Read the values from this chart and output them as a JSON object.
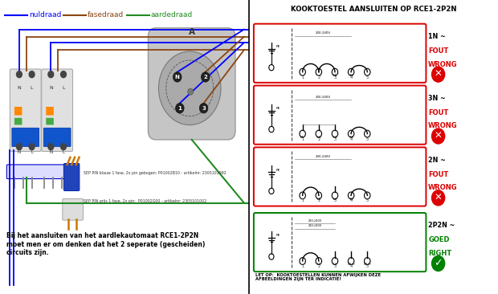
{
  "bg_color": "#ffffff",
  "title_right": "KOOKTOESTEL AANSLUITEN OP RCE1-2P2N",
  "bottom_note": "LET OP:  KOOKTOESTELLEN KUNNEN AFWIJKEN DEZE\nAFBEELDINGEN ZIJN TER INDICATIE!",
  "main_text": "Bij het aansluiten van het aardlekautomaat RCE1-2P2N\nmoet men er om denken dat het 2 seperate (gescheiden)\ncircuits zijn.",
  "sep_text1": "SEP PIN blauw 1 fase, 2x pin gebogen: P01002B10 - artikelnr: 2305101992",
  "sep_text2": "SEP PIN grijs 1 fase, 2x pin:  P01002G00 - artikelnr: 2305101002",
  "nul_color": "#0000ff",
  "fase_color": "#8B4513",
  "aard_color": "#228B22",
  "divider_color": "#000000"
}
